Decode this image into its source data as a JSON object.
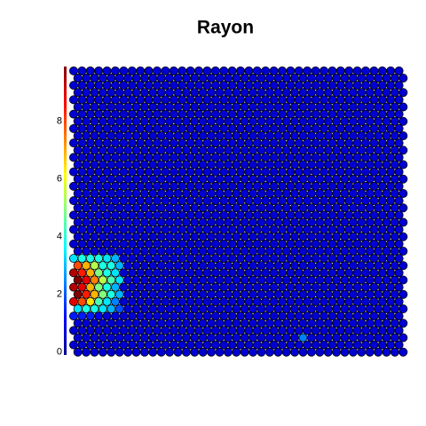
{
  "chart_data": {
    "type": "hexmap",
    "title": "Rayon",
    "ylim": [
      -0.1,
      9.9
    ],
    "yticks": [
      0,
      2,
      4,
      6,
      8
    ],
    "zlim": [
      0,
      100
    ],
    "colormap": "jet",
    "values": [
      [
        8,
        8,
        8,
        8,
        8,
        8,
        8,
        8,
        8,
        8,
        8,
        8,
        8,
        8,
        8,
        8,
        8,
        8,
        8,
        8,
        8,
        8,
        8,
        8,
        8,
        8,
        8,
        8,
        8,
        8,
        8,
        8,
        8,
        8,
        8,
        8,
        8,
        8,
        8,
        8
      ],
      [
        8,
        8,
        8,
        8,
        8,
        8,
        8,
        8,
        8,
        8,
        8,
        8,
        8,
        8,
        8,
        8,
        8,
        8,
        8,
        8,
        8,
        8,
        8,
        8,
        8,
        8,
        8,
        8,
        8,
        8,
        8,
        8,
        8,
        8,
        8,
        8,
        8,
        8,
        8,
        8
      ],
      [
        8,
        8,
        8,
        8,
        8,
        8,
        8,
        8,
        8,
        8,
        8,
        8,
        8,
        8,
        8,
        8,
        8,
        8,
        8,
        8,
        8,
        8,
        8,
        8,
        8,
        8,
        8,
        25,
        8,
        8,
        8,
        8,
        8,
        8,
        8,
        8,
        8,
        8,
        8,
        8
      ],
      [
        8,
        8,
        8,
        8,
        8,
        8,
        8,
        8,
        8,
        8,
        8,
        8,
        8,
        8,
        8,
        8,
        8,
        8,
        8,
        8,
        8,
        8,
        8,
        8,
        8,
        8,
        8,
        8,
        8,
        8,
        8,
        8,
        8,
        8,
        8,
        8,
        8,
        8,
        8,
        8
      ],
      [
        8,
        8,
        8,
        8,
        8,
        8,
        8,
        8,
        8,
        8,
        8,
        8,
        8,
        8,
        8,
        8,
        8,
        8,
        8,
        8,
        8,
        8,
        8,
        8,
        8,
        8,
        8,
        8,
        8,
        8,
        8,
        8,
        8,
        8,
        8,
        8,
        8,
        8,
        8,
        8
      ],
      [
        15,
        15,
        15,
        10,
        8,
        8,
        8,
        8,
        8,
        8,
        8,
        8,
        8,
        8,
        8,
        8,
        8,
        8,
        8,
        8,
        8,
        8,
        8,
        8,
        8,
        8,
        8,
        8,
        8,
        8,
        8,
        8,
        8,
        8,
        8,
        8,
        8,
        8,
        8,
        8
      ],
      [
        35,
        40,
        40,
        35,
        30,
        20,
        8,
        8,
        8,
        8,
        8,
        8,
        8,
        8,
        8,
        8,
        8,
        8,
        8,
        8,
        8,
        8,
        8,
        8,
        8,
        8,
        8,
        8,
        8,
        8,
        8,
        8,
        8,
        8,
        8,
        8,
        8,
        8,
        8,
        8
      ],
      [
        90,
        80,
        65,
        45,
        35,
        25,
        8,
        8,
        8,
        8,
        8,
        8,
        8,
        8,
        8,
        8,
        8,
        8,
        8,
        8,
        8,
        8,
        8,
        8,
        8,
        8,
        8,
        8,
        8,
        8,
        8,
        8,
        8,
        8,
        8,
        8,
        8,
        8,
        8,
        8
      ],
      [
        100,
        85,
        70,
        50,
        40,
        30,
        8,
        8,
        8,
        8,
        8,
        8,
        8,
        8,
        8,
        8,
        8,
        8,
        8,
        8,
        8,
        8,
        8,
        8,
        8,
        8,
        8,
        8,
        8,
        8,
        8,
        8,
        8,
        8,
        8,
        8,
        8,
        8,
        8,
        8
      ],
      [
        95,
        90,
        70,
        50,
        40,
        30,
        8,
        8,
        8,
        8,
        8,
        8,
        8,
        8,
        8,
        8,
        8,
        8,
        8,
        8,
        8,
        8,
        8,
        8,
        8,
        8,
        8,
        8,
        8,
        8,
        8,
        8,
        8,
        8,
        8,
        8,
        8,
        8,
        8,
        8
      ],
      [
        100,
        90,
        75,
        55,
        45,
        35,
        8,
        8,
        8,
        8,
        8,
        8,
        8,
        8,
        8,
        8,
        8,
        8,
        8,
        8,
        8,
        8,
        8,
        8,
        8,
        8,
        8,
        8,
        8,
        8,
        8,
        8,
        8,
        8,
        8,
        8,
        8,
        8,
        8,
        8
      ],
      [
        95,
        85,
        70,
        50,
        40,
        35,
        8,
        8,
        8,
        8,
        8,
        8,
        8,
        8,
        8,
        8,
        8,
        8,
        8,
        8,
        8,
        8,
        8,
        8,
        8,
        8,
        8,
        8,
        8,
        8,
        8,
        8,
        8,
        8,
        8,
        8,
        8,
        8,
        8,
        8
      ],
      [
        80,
        70,
        55,
        40,
        40,
        30,
        8,
        8,
        8,
        8,
        8,
        8,
        8,
        8,
        8,
        8,
        8,
        8,
        8,
        8,
        8,
        8,
        8,
        8,
        8,
        8,
        8,
        8,
        8,
        8,
        8,
        8,
        8,
        8,
        8,
        8,
        8,
        8,
        8,
        8
      ],
      [
        35,
        40,
        40,
        40,
        35,
        30,
        8,
        8,
        8,
        8,
        8,
        8,
        8,
        8,
        8,
        8,
        8,
        8,
        8,
        8,
        8,
        8,
        8,
        8,
        8,
        8,
        8,
        8,
        8,
        8,
        8,
        8,
        8,
        8,
        8,
        8,
        8,
        8,
        8,
        8
      ],
      [
        8,
        8,
        8,
        8,
        8,
        8,
        8,
        8,
        8,
        8,
        8,
        8,
        8,
        8,
        8,
        8,
        8,
        8,
        8,
        8,
        8,
        8,
        8,
        8,
        8,
        8,
        8,
        8,
        8,
        8,
        8,
        8,
        8,
        8,
        8,
        8,
        8,
        8,
        8,
        8
      ],
      [
        8,
        8,
        8,
        8,
        8,
        8,
        8,
        8,
        8,
        8,
        8,
        8,
        8,
        8,
        8,
        8,
        8,
        8,
        8,
        8,
        8,
        8,
        8,
        8,
        8,
        8,
        8,
        8,
        8,
        8,
        8,
        8,
        8,
        8,
        8,
        8,
        8,
        8,
        8,
        8
      ],
      [
        8,
        8,
        8,
        8,
        8,
        8,
        8,
        8,
        8,
        8,
        8,
        8,
        8,
        8,
        8,
        8,
        8,
        8,
        8,
        8,
        8,
        8,
        8,
        8,
        8,
        8,
        8,
        8,
        8,
        8,
        8,
        8,
        8,
        8,
        8,
        8,
        8,
        8,
        8,
        8
      ],
      [
        8,
        8,
        8,
        8,
        8,
        8,
        8,
        8,
        8,
        8,
        8,
        8,
        8,
        8,
        8,
        8,
        8,
        8,
        8,
        8,
        8,
        8,
        8,
        8,
        8,
        8,
        8,
        8,
        8,
        8,
        8,
        8,
        8,
        8,
        8,
        8,
        8,
        8,
        8,
        8
      ],
      [
        8,
        8,
        8,
        8,
        8,
        8,
        8,
        8,
        8,
        8,
        8,
        8,
        8,
        8,
        8,
        8,
        8,
        8,
        8,
        8,
        8,
        8,
        8,
        8,
        8,
        8,
        8,
        8,
        8,
        8,
        8,
        8,
        8,
        8,
        8,
        8,
        8,
        8,
        8,
        8
      ],
      [
        8,
        8,
        8,
        8,
        8,
        8,
        8,
        8,
        8,
        8,
        8,
        8,
        8,
        8,
        8,
        8,
        8,
        8,
        8,
        8,
        8,
        8,
        8,
        8,
        8,
        8,
        8,
        8,
        8,
        8,
        8,
        8,
        8,
        8,
        8,
        8,
        8,
        8,
        8,
        8
      ],
      [
        8,
        8,
        8,
        8,
        8,
        8,
        8,
        8,
        8,
        8,
        8,
        8,
        8,
        8,
        8,
        8,
        8,
        8,
        8,
        8,
        8,
        8,
        8,
        8,
        8,
        8,
        8,
        8,
        8,
        8,
        8,
        8,
        8,
        8,
        8,
        8,
        8,
        8,
        8,
        8
      ],
      [
        8,
        8,
        8,
        8,
        8,
        8,
        8,
        8,
        8,
        8,
        8,
        8,
        8,
        8,
        8,
        8,
        8,
        8,
        8,
        8,
        8,
        8,
        8,
        8,
        8,
        8,
        8,
        8,
        8,
        8,
        8,
        8,
        8,
        8,
        8,
        8,
        8,
        8,
        8,
        8
      ],
      [
        8,
        8,
        8,
        8,
        8,
        8,
        8,
        8,
        8,
        8,
        8,
        8,
        8,
        8,
        8,
        8,
        8,
        8,
        8,
        8,
        8,
        8,
        8,
        8,
        8,
        8,
        8,
        8,
        8,
        8,
        8,
        8,
        8,
        8,
        8,
        8,
        8,
        8,
        8,
        8
      ],
      [
        8,
        8,
        8,
        8,
        8,
        8,
        8,
        8,
        8,
        8,
        8,
        8,
        8,
        8,
        8,
        8,
        8,
        8,
        8,
        8,
        8,
        8,
        8,
        8,
        8,
        8,
        8,
        8,
        8,
        8,
        8,
        8,
        8,
        8,
        8,
        8,
        8,
        8,
        8,
        8
      ],
      [
        8,
        8,
        8,
        8,
        8,
        8,
        8,
        8,
        8,
        8,
        8,
        8,
        8,
        8,
        8,
        8,
        8,
        8,
        8,
        8,
        8,
        8,
        8,
        8,
        8,
        8,
        8,
        8,
        8,
        8,
        8,
        8,
        8,
        8,
        8,
        8,
        8,
        8,
        8,
        8
      ],
      [
        8,
        8,
        8,
        8,
        8,
        8,
        8,
        8,
        8,
        8,
        8,
        8,
        8,
        8,
        8,
        8,
        8,
        8,
        8,
        8,
        8,
        8,
        8,
        8,
        8,
        8,
        8,
        8,
        8,
        8,
        8,
        8,
        8,
        8,
        8,
        8,
        8,
        8,
        8,
        8
      ],
      [
        8,
        8,
        8,
        8,
        8,
        8,
        8,
        8,
        8,
        8,
        8,
        8,
        8,
        8,
        8,
        8,
        8,
        8,
        8,
        8,
        8,
        8,
        8,
        8,
        8,
        8,
        8,
        8,
        8,
        8,
        8,
        8,
        8,
        8,
        8,
        8,
        8,
        8,
        8,
        8
      ],
      [
        8,
        8,
        8,
        8,
        8,
        8,
        8,
        8,
        8,
        8,
        8,
        8,
        8,
        8,
        8,
        8,
        8,
        8,
        8,
        8,
        8,
        8,
        8,
        8,
        8,
        8,
        8,
        8,
        8,
        8,
        8,
        8,
        8,
        8,
        8,
        8,
        8,
        8,
        8,
        8
      ],
      [
        8,
        8,
        8,
        8,
        8,
        8,
        8,
        8,
        8,
        8,
        8,
        8,
        8,
        8,
        8,
        8,
        8,
        8,
        8,
        8,
        8,
        8,
        8,
        8,
        8,
        8,
        8,
        8,
        8,
        8,
        8,
        8,
        8,
        8,
        8,
        8,
        8,
        8,
        8,
        8
      ],
      [
        8,
        8,
        8,
        8,
        8,
        8,
        8,
        8,
        8,
        8,
        8,
        8,
        8,
        8,
        8,
        8,
        8,
        8,
        8,
        8,
        8,
        8,
        8,
        8,
        8,
        8,
        8,
        8,
        8,
        8,
        8,
        8,
        8,
        8,
        8,
        8,
        8,
        8,
        8,
        8
      ],
      [
        8,
        8,
        8,
        8,
        8,
        8,
        8,
        8,
        8,
        8,
        8,
        8,
        8,
        8,
        8,
        8,
        8,
        8,
        8,
        8,
        8,
        8,
        8,
        8,
        8,
        8,
        8,
        8,
        8,
        8,
        8,
        8,
        8,
        8,
        8,
        8,
        8,
        8,
        8,
        8
      ],
      [
        8,
        8,
        8,
        8,
        8,
        8,
        8,
        8,
        8,
        8,
        8,
        8,
        8,
        8,
        8,
        8,
        8,
        8,
        8,
        8,
        8,
        8,
        8,
        8,
        8,
        8,
        8,
        8,
        8,
        8,
        8,
        8,
        8,
        8,
        8,
        8,
        8,
        8,
        8,
        8
      ],
      [
        8,
        8,
        8,
        8,
        8,
        8,
        8,
        8,
        8,
        8,
        8,
        8,
        8,
        8,
        8,
        8,
        8,
        8,
        8,
        8,
        8,
        8,
        8,
        8,
        8,
        8,
        8,
        8,
        8,
        8,
        8,
        8,
        8,
        8,
        8,
        8,
        8,
        8,
        8,
        8
      ],
      [
        8,
        8,
        8,
        8,
        8,
        8,
        8,
        8,
        8,
        8,
        8,
        8,
        8,
        8,
        8,
        8,
        8,
        8,
        8,
        8,
        8,
        8,
        8,
        8,
        8,
        8,
        8,
        8,
        8,
        8,
        8,
        8,
        8,
        8,
        8,
        8,
        8,
        8,
        8,
        8
      ],
      [
        8,
        8,
        8,
        8,
        8,
        8,
        8,
        8,
        8,
        8,
        8,
        8,
        8,
        8,
        8,
        8,
        8,
        8,
        8,
        8,
        8,
        8,
        8,
        8,
        8,
        8,
        8,
        8,
        8,
        8,
        8,
        8,
        8,
        8,
        8,
        8,
        8,
        8,
        8,
        8
      ],
      [
        8,
        8,
        8,
        8,
        8,
        8,
        8,
        8,
        8,
        8,
        8,
        8,
        8,
        8,
        8,
        8,
        8,
        8,
        8,
        8,
        8,
        8,
        8,
        8,
        8,
        8,
        8,
        8,
        8,
        8,
        8,
        8,
        8,
        8,
        8,
        8,
        8,
        8,
        8,
        8
      ],
      [
        8,
        8,
        8,
        8,
        8,
        8,
        8,
        8,
        8,
        8,
        8,
        8,
        8,
        8,
        8,
        8,
        8,
        8,
        8,
        8,
        8,
        8,
        8,
        8,
        8,
        8,
        8,
        8,
        8,
        8,
        8,
        8,
        8,
        8,
        8,
        8,
        8,
        8,
        8,
        8
      ],
      [
        8,
        8,
        8,
        8,
        8,
        8,
        8,
        8,
        8,
        8,
        8,
        8,
        8,
        8,
        8,
        8,
        8,
        8,
        8,
        8,
        8,
        8,
        8,
        8,
        8,
        8,
        8,
        8,
        8,
        8,
        8,
        8,
        8,
        8,
        8,
        8,
        8,
        8,
        8,
        8
      ],
      [
        8,
        8,
        8,
        8,
        8,
        8,
        8,
        8,
        8,
        8,
        8,
        8,
        8,
        8,
        8,
        8,
        8,
        8,
        8,
        8,
        8,
        8,
        8,
        8,
        8,
        8,
        8,
        8,
        8,
        8,
        8,
        8,
        8,
        8,
        8,
        8,
        8,
        8,
        8,
        8
      ],
      [
        8,
        8,
        8,
        8,
        8,
        8,
        8,
        8,
        8,
        8,
        8,
        8,
        8,
        8,
        8,
        8,
        8,
        8,
        8,
        8,
        8,
        8,
        8,
        8,
        8,
        8,
        8,
        8,
        8,
        8,
        8,
        8,
        8,
        8,
        8,
        8,
        8,
        8,
        8,
        8
      ]
    ]
  }
}
